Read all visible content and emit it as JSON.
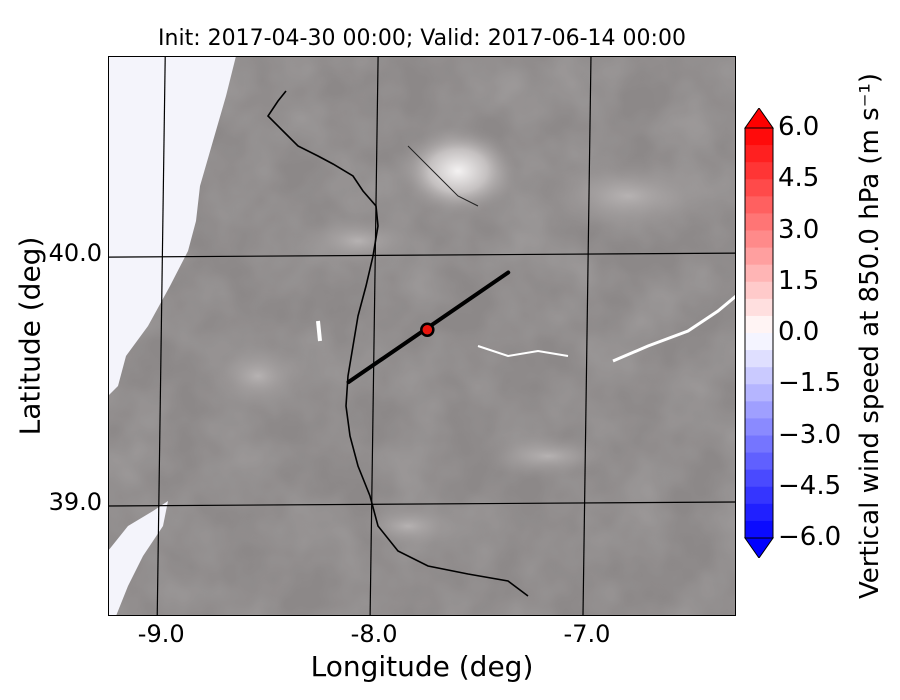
{
  "title": "Init: 2017-04-30 00:00; Valid: 2017-06-14 00:00",
  "x_axis": {
    "label": "Longitude (deg)",
    "ticks": [
      "-9.0",
      "-8.0",
      "-7.0"
    ]
  },
  "y_axis": {
    "label": "Latitude (deg)",
    "ticks": [
      "40.0",
      "39.0"
    ]
  },
  "colorbar": {
    "label": "Vertical wind speed at 850.0 hPa (m s⁻¹)",
    "ticks": [
      "6.0",
      "4.5",
      "3.0",
      "1.5",
      "0.0",
      "−1.5",
      "−3.0",
      "−4.5",
      "−6.0"
    ],
    "max_color": "#ff0000",
    "min_color": "#0000ff",
    "mid_color": "#ffffff"
  },
  "map": {
    "extent": {
      "lon_min": -9.25,
      "lon_max": -6.3,
      "lat_min": 38.55,
      "lat_max": 40.8
    },
    "graticule_lons": [
      -9.0,
      -8.0,
      -7.0
    ],
    "graticule_lats": [
      40.0,
      39.0
    ],
    "terrain_color": "#8c8888",
    "sea_color": "#f4f4fb",
    "transect": {
      "start": {
        "lon": -8.12,
        "lat": 39.49
      },
      "end": {
        "lon": -7.37,
        "lat": 39.93
      }
    },
    "point": {
      "lon": -7.75,
      "lat": 39.7,
      "color": "#e8140c"
    }
  }
}
